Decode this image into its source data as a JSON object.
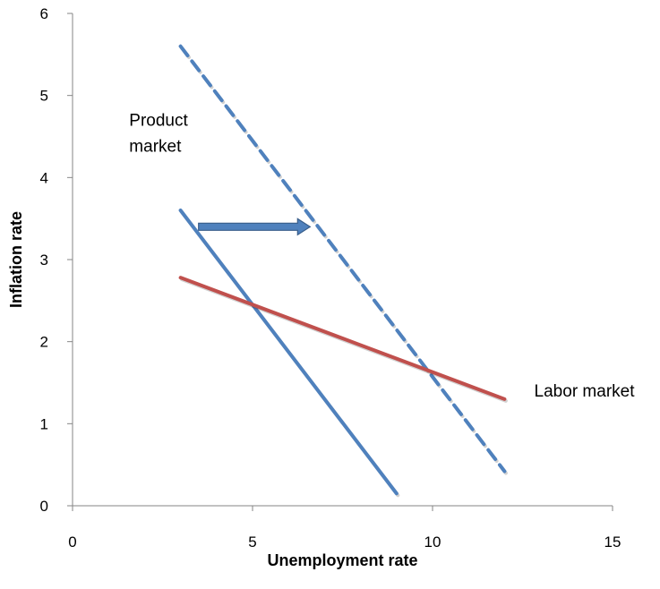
{
  "chart_data": {
    "type": "line",
    "title": "",
    "xlabel": "Unemployment rate",
    "ylabel": "Inflation rate",
    "xlim": [
      0,
      15
    ],
    "ylim": [
      0,
      6
    ],
    "xticks": [
      0,
      5,
      10,
      15
    ],
    "yticks": [
      0,
      1,
      2,
      3,
      4,
      5,
      6
    ],
    "grid": false,
    "legend": "none",
    "series": [
      {
        "color": "#4f81bd",
        "style": "solid",
        "x": [
          3,
          9
        ],
        "y": [
          3.6,
          0.15
        ]
      },
      {
        "color": "#4f81bd",
        "style": "dashed",
        "x": [
          3,
          12
        ],
        "y": [
          5.6,
          0.42
        ]
      },
      {
        "color": "#c0504d",
        "style": "solid",
        "x": [
          3,
          12
        ],
        "y": [
          2.78,
          1.3
        ]
      }
    ],
    "arrow": {
      "color": "#4f81bd",
      "from": [
        3.5,
        3.4
      ],
      "to": [
        6.6,
        3.4
      ]
    },
    "annotations": [
      {
        "text": "Product\nmarket",
        "x": 1.5,
        "y": 4.5
      },
      {
        "text": "Labor market",
        "x": 12.75,
        "y": 1.2
      }
    ]
  }
}
